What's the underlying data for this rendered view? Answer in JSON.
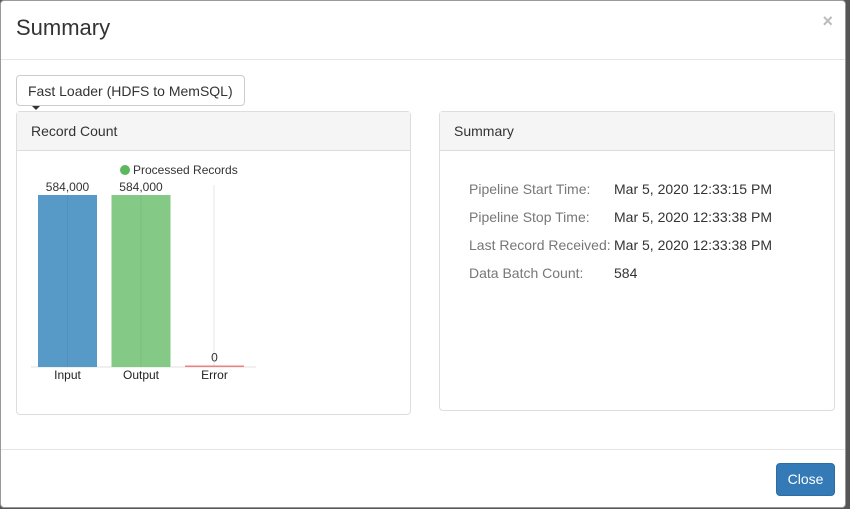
{
  "modal": {
    "title": "Summary",
    "close_icon": "×",
    "close_label": "Close"
  },
  "dropdown": {
    "selected": "Fast Loader (HDFS to MemSQL)"
  },
  "record_panel": {
    "title": "Record Count"
  },
  "summary_panel": {
    "title": "Summary",
    "rows": [
      {
        "label": "Pipeline Start Time:",
        "value": "Mar 5, 2020 12:33:15 PM"
      },
      {
        "label": "Pipeline Stop Time:",
        "value": "Mar 5, 2020 12:33:38 PM"
      },
      {
        "label": "Last Record Received:",
        "value": "Mar 5, 2020 12:33:38 PM"
      },
      {
        "label": "Data Batch Count:",
        "value": "584"
      }
    ]
  },
  "chart_data": {
    "type": "bar",
    "categories": [
      "Input",
      "Output",
      "Error"
    ],
    "values": [
      584000,
      584000,
      0
    ],
    "data_labels": [
      "584,000",
      "584,000",
      "0"
    ],
    "colors": [
      "#5799c7",
      "#85c987",
      "#f08080"
    ],
    "legend": {
      "label": "Processed Records",
      "color": "#5cb85c",
      "position": "top"
    },
    "ylim": [
      0,
      584000
    ]
  }
}
